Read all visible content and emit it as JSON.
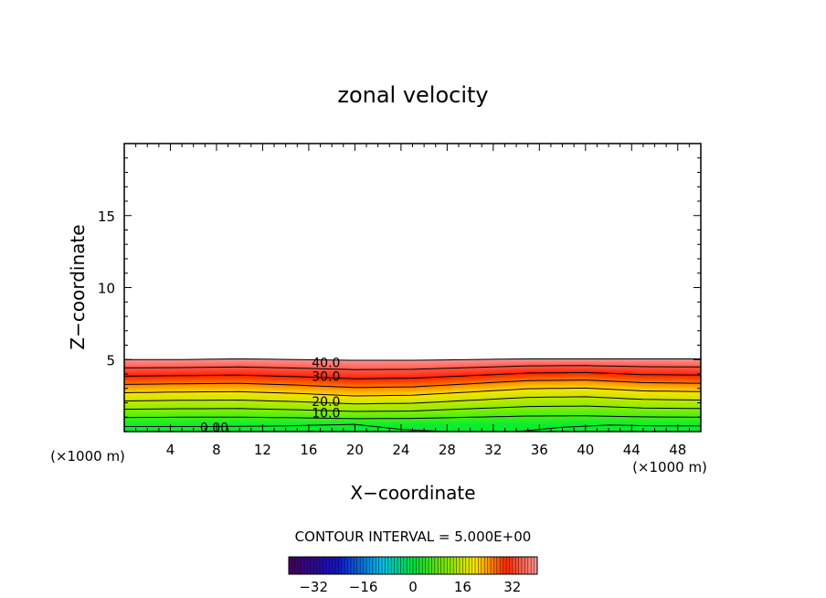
{
  "chart_data": {
    "type": "heatmap",
    "title": "zonal velocity",
    "xlabel": "X−coordinate",
    "ylabel": "Z−coordinate",
    "x_unit_left": "(×1000 m)",
    "x_unit_right": "(×1000 m)",
    "xlim": [
      0,
      50
    ],
    "ylim": [
      0,
      20
    ],
    "x_ticks": [
      4,
      8,
      12,
      16,
      20,
      24,
      28,
      32,
      36,
      40,
      44,
      48
    ],
    "y_ticks": [
      5,
      10,
      15
    ],
    "x_tick_labels": [
      "4",
      "8",
      "12",
      "16",
      "20",
      "24",
      "28",
      "32",
      "36",
      "40",
      "44",
      "48"
    ],
    "y_tick_labels": [
      "5",
      "10",
      "15"
    ],
    "contour_levels": [
      0,
      5,
      10,
      15,
      20,
      25,
      30,
      35,
      40
    ],
    "contour_labels": [
      {
        "text": "40.0",
        "x": 17.5,
        "z": 4.8
      },
      {
        "text": "30.0",
        "x": 17.5,
        "z": 3.85
      },
      {
        "text": "20.0",
        "x": 17.5,
        "z": 2.1
      },
      {
        "text": "10.0",
        "x": 17.5,
        "z": 1.3
      },
      {
        "text": "0.00",
        "x": 7.8,
        "z": 0.3
      }
    ],
    "contour_profile": {
      "x": [
        0,
        5,
        10,
        15,
        20,
        25,
        30,
        35,
        40,
        45,
        50
      ],
      "field_top_z": [
        5.0,
        5.0,
        5.05,
        5.0,
        4.95,
        4.95,
        5.0,
        5.05,
        5.05,
        5.05,
        5.05
      ],
      "vertical_shift_z": [
        0.0,
        0.05,
        0.05,
        -0.05,
        -0.2,
        -0.15,
        0.05,
        0.25,
        0.3,
        0.1,
        0.05
      ]
    },
    "contour_interval_text": "CONTOUR INTERVAL = 5.000E+00",
    "colorbar": {
      "range": [
        -40,
        40
      ],
      "tick_values": [
        -32,
        -16,
        0,
        16,
        32
      ],
      "tick_labels": [
        "−32",
        "−16",
        "0",
        "16",
        "32"
      ]
    },
    "colors": {
      "v0": "#00ee30",
      "v10": "#88ee00",
      "v20": "#ffe000",
      "v30": "#ff2000",
      "v40": "#ff9090"
    }
  }
}
